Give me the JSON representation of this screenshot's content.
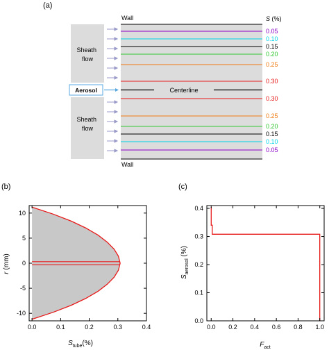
{
  "panel_a": {
    "label": "(a)",
    "wall_top": "Wall",
    "wall_bottom": "Wall",
    "s_header_symbol": "S",
    "s_header_unit": " (%)",
    "sheath_top": [
      "Sheath",
      "flow"
    ],
    "sheath_bottom": [
      "Sheath",
      "flow"
    ],
    "aerosol": "Aerosol",
    "centerline": "Centerline",
    "colors": {
      "0.05": "#8b00c8",
      "0.10": "#00d4e8",
      "0.15": "#000000",
      "0.20": "#2fc82f",
      "0.25": "#f07a10",
      "0.30": "#e81a1a"
    },
    "lines_top": [
      "0.05",
      "0.10",
      "0.15",
      "0.20",
      "0.25",
      "0.30"
    ],
    "lines_bottom": [
      "0.30",
      "0.25",
      "0.20",
      "0.15",
      "0.10",
      "0.05"
    ]
  },
  "chart_data": [
    {
      "type": "line",
      "panel_label": "(b)",
      "xlabel_main": "S",
      "xlabel_sub": "tube",
      "xlabel_unit": "(%)",
      "ylabel_main": "r",
      "ylabel_unit": " (mm)",
      "xlim": [
        -0.01,
        0.4
      ],
      "ylim": [
        -11.5,
        11.5
      ],
      "xticks": [
        0.0,
        0.1,
        0.2,
        0.3,
        0.4
      ],
      "xtick_labels": [
        "0.0",
        "0.1",
        "0.2",
        "0.3",
        "0.4"
      ],
      "yticks": [
        -10,
        -5,
        0,
        5,
        10
      ],
      "ytick_labels": [
        "-10",
        "-5",
        "0",
        "5",
        "10"
      ],
      "series": [
        {
          "color": "#e81a1a",
          "x": [
            0.0,
            0.074,
            0.137,
            0.189,
            0.231,
            0.263,
            0.287,
            0.302,
            0.308,
            0.302,
            0.287,
            0.263,
            0.231,
            0.189,
            0.137,
            0.074,
            0.0
          ],
          "y": [
            11.2,
            9.8,
            8.4,
            7.0,
            5.6,
            4.2,
            2.8,
            1.4,
            0.0,
            -1.4,
            -2.8,
            -4.2,
            -5.6,
            -7.0,
            -8.4,
            -9.8,
            -11.2
          ]
        }
      ],
      "fill_color": "#c8c8c8",
      "center_lines_y": [
        0.3,
        -0.3
      ],
      "center_lines_x_max": 0.308
    },
    {
      "type": "line",
      "panel_label": "(c)",
      "xlabel_main": "F",
      "xlabel_sub": "act",
      "ylabel_main": "S",
      "ylabel_sub": "aerosol",
      "ylabel_unit": " (%)",
      "xlim": [
        -0.04,
        1.04
      ],
      "ylim": [
        0.0,
        0.41
      ],
      "xticks": [
        0.0,
        0.2,
        0.4,
        0.6,
        0.8,
        1.0
      ],
      "xtick_labels": [
        "0.0",
        "0.2",
        "0.4",
        "0.6",
        "0.8",
        "1.0"
      ],
      "yticks": [
        0.0,
        0.1,
        0.2,
        0.3,
        0.4
      ],
      "ytick_labels": [
        "0.0",
        "0.1",
        "0.2",
        "0.3",
        "0.4"
      ],
      "series": [
        {
          "color": "#e81a1a",
          "x": [
            0.0,
            0.0,
            0.01,
            0.01,
            1.0,
            1.0
          ],
          "y": [
            0.405,
            0.34,
            0.34,
            0.308,
            0.308,
            0.0
          ]
        }
      ]
    }
  ]
}
